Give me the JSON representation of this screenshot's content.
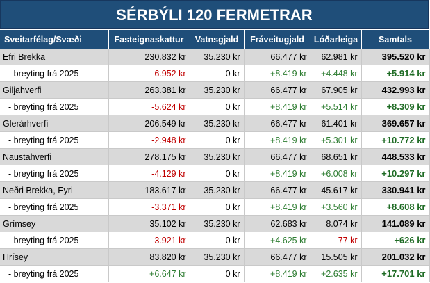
{
  "title": "SÉRBÝLI 120 FERMETRAR",
  "headers": [
    "Sveitarfélag/Svæði",
    "Fasteignaskattur",
    "Vatnsgjald",
    "Fráveitugjald",
    "Lóðarleiga",
    "Samtals"
  ],
  "rows": [
    {
      "area": "Efri Brekka",
      "cells": [
        "230.832 kr",
        "35.230 kr",
        "66.477 kr",
        "62.981 kr",
        "395.520 kr"
      ],
      "change_label": "- breyting frá 2025",
      "change_cells": [
        "-6.952 kr",
        "0 kr",
        "+8.419 kr",
        "+4.448 kr",
        "+5.914 kr"
      ]
    },
    {
      "area": "Giljahverfi",
      "cells": [
        "263.381 kr",
        "35.230 kr",
        "66.477 kr",
        "67.905 kr",
        "432.993 kr"
      ],
      "change_label": "- breyting frá 2025",
      "change_cells": [
        "-5.624 kr",
        "0 kr",
        "+8.419 kr",
        "+5.514 kr",
        "+8.309 kr"
      ]
    },
    {
      "area": "Glerárhverfi",
      "cells": [
        "206.549 kr",
        "35.230 kr",
        "66.477 kr",
        "61.401 kr",
        "369.657 kr"
      ],
      "change_label": "- breyting frá 2025",
      "change_cells": [
        "-2.948 kr",
        "0 kr",
        "+8.419 kr",
        "+5.301 kr",
        "+10.772 kr"
      ]
    },
    {
      "area": "Naustahverfi",
      "cells": [
        "278.175 kr",
        "35.230 kr",
        "66.477 kr",
        "68.651 kr",
        "448.533 kr"
      ],
      "change_label": "- breyting frá 2025",
      "change_cells": [
        "-4.129 kr",
        "0 kr",
        "+8.419 kr",
        "+6.008 kr",
        "+10.297 kr"
      ]
    },
    {
      "area": "Neðri Brekka, Eyri",
      "cells": [
        "183.617 kr",
        "35.230 kr",
        "66.477 kr",
        "45.617 kr",
        "330.941 kr"
      ],
      "change_label": "- breyting frá 2025",
      "change_cells": [
        "-3.371 kr",
        "0 kr",
        "+8.419 kr",
        "+3.560 kr",
        "+8.608 kr"
      ]
    },
    {
      "area": "Grímsey",
      "cells": [
        "35.102 kr",
        "35.230 kr",
        "62.683 kr",
        "8.074 kr",
        "141.089 kr"
      ],
      "change_label": "- breyting frá 2025",
      "change_cells": [
        "-3.921 kr",
        "0 kr",
        "+4.625 kr",
        "-77 kr",
        "+626 kr"
      ]
    },
    {
      "area": "Hrísey",
      "cells": [
        "83.820 kr",
        "35.230 kr",
        "66.477 kr",
        "15.505 kr",
        "201.032 kr"
      ],
      "change_label": "- breyting frá 2025",
      "change_cells": [
        "+6.647 kr",
        "0 kr",
        "+8.419 kr",
        "+2.635 kr",
        "+17.701 kr"
      ]
    }
  ],
  "colors": {
    "header_bg": "#1f4e79",
    "row_bg": "#d9d9d9",
    "negative": "#c00000",
    "positive": "#2e7d32"
  }
}
